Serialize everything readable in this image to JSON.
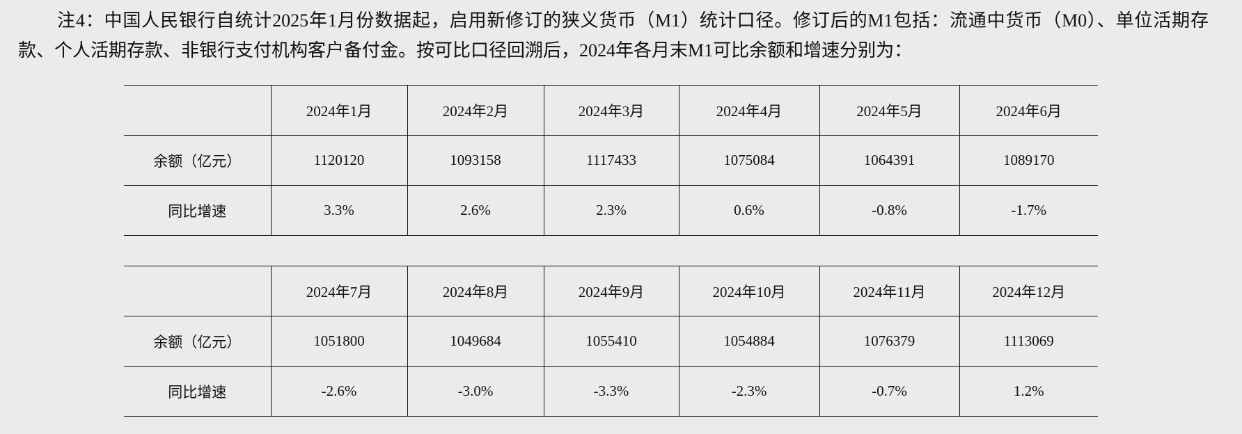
{
  "note": "注4：中国人民银行自统计2025年1月份数据起，启用新修订的狭义货币（M1）统计口径。修订后的M1包括：流通中货币（M0）、单位活期存款、个人活期存款、非银行支付机构客户备付金。按可比口径回溯后，2024年各月末M1可比余额和增速分别为：",
  "tables": [
    {
      "columns": [
        "2024年1月",
        "2024年2月",
        "2024年3月",
        "2024年4月",
        "2024年5月",
        "2024年6月"
      ],
      "rows": [
        {
          "label": "余额（亿元）",
          "values": [
            "1120120",
            "1093158",
            "1117433",
            "1075084",
            "1064391",
            "1089170"
          ]
        },
        {
          "label": "同比增速",
          "values": [
            "3.3%",
            "2.6%",
            "2.3%",
            "0.6%",
            "-0.8%",
            "-1.7%"
          ]
        }
      ]
    },
    {
      "columns": [
        "2024年7月",
        "2024年8月",
        "2024年9月",
        "2024年10月",
        "2024年11月",
        "2024年12月"
      ],
      "rows": [
        {
          "label": "余额（亿元）",
          "values": [
            "1051800",
            "1049684",
            "1055410",
            "1054884",
            "1076379",
            "1113069"
          ]
        },
        {
          "label": "同比增速",
          "values": [
            "-2.6%",
            "-3.0%",
            "-3.3%",
            "-2.3%",
            "-0.7%",
            "1.2%"
          ]
        }
      ]
    }
  ]
}
